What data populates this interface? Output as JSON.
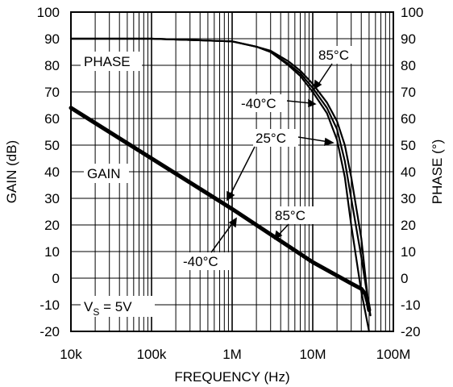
{
  "chart_data": {
    "type": "line",
    "x_scale": "log",
    "xlim": [
      10000,
      100000000
    ],
    "ylim_left": [
      -20,
      100
    ],
    "ylim_right": [
      -20,
      100
    ],
    "grid": true,
    "xlabel": "FREQUENCY (Hz)",
    "ylabel_left": "GAIN (dB)",
    "ylabel_right": "PHASE (°)",
    "x_ticks": [
      {
        "value": 10000,
        "label": "10k"
      },
      {
        "value": 100000,
        "label": "100k"
      },
      {
        "value": 1000000,
        "label": "1M"
      },
      {
        "value": 10000000,
        "label": "10M"
      },
      {
        "value": 100000000,
        "label": "100M"
      }
    ],
    "y_ticks_left": [
      "100",
      "90",
      "80",
      "70",
      "60",
      "50",
      "40",
      "30",
      "20",
      "10",
      "0",
      "-10",
      "-20"
    ],
    "y_ticks_right": [
      "100",
      "90",
      "80",
      "70",
      "60",
      "50",
      "40",
      "30",
      "20",
      "10",
      "0",
      "-10",
      "-20"
    ],
    "series": [
      {
        "group": "phase",
        "axis": "right",
        "width": 2.2,
        "x": [
          10000,
          100000,
          1000000,
          2000000,
          3000000,
          5000000,
          7000000,
          10000000,
          15000000,
          20000000,
          25000000,
          30000000,
          40000000,
          50000000
        ],
        "y": [
          90,
          90,
          89,
          87,
          85,
          80,
          76,
          70,
          62,
          52,
          38,
          20,
          -5,
          -20
        ]
      },
      {
        "group": "phase",
        "axis": "right",
        "width": 2.2,
        "x": [
          10000,
          100000,
          1000000,
          2000000,
          3000000,
          5000000,
          7000000,
          10000000,
          15000000,
          20000000,
          25000000,
          30000000,
          40000000,
          52000000
        ],
        "y": [
          90,
          90,
          89,
          87,
          85,
          80.5,
          77,
          71.5,
          64,
          56,
          44,
          30,
          8,
          -14
        ]
      },
      {
        "group": "phase",
        "axis": "right",
        "width": 2.2,
        "x": [
          10000,
          100000,
          1000000,
          2000000,
          3000000,
          5000000,
          7000000,
          10000000,
          15000000,
          20000000,
          25000000,
          30000000,
          40000000,
          50000000
        ],
        "y": [
          90,
          90,
          89,
          87,
          85.5,
          81.5,
          78,
          73,
          66,
          59,
          50,
          38,
          15,
          -12
        ]
      },
      {
        "group": "gain",
        "axis": "left",
        "width": 5,
        "x": [
          10000,
          100000,
          1000000,
          10000000,
          30000000,
          40000000,
          45000000,
          48000000,
          50000000
        ],
        "y": [
          64,
          45,
          26,
          6,
          -2,
          -4,
          -6,
          -9,
          -12
        ]
      }
    ],
    "annotations": [
      {
        "id": "phase",
        "text": "PHASE"
      },
      {
        "id": "gain",
        "text": "GAIN"
      },
      {
        "id": "vs",
        "text_main": "V",
        "text_sub": "S",
        "text_rest": " = 5V"
      },
      {
        "id": "phase_85",
        "text": "85°C"
      },
      {
        "id": "phase_m40",
        "text": "-40°C"
      },
      {
        "id": "phase_25",
        "text": "25°C"
      },
      {
        "id": "gain_85",
        "text": "85°C"
      },
      {
        "id": "gain_m40",
        "text": "-40°C"
      }
    ]
  }
}
